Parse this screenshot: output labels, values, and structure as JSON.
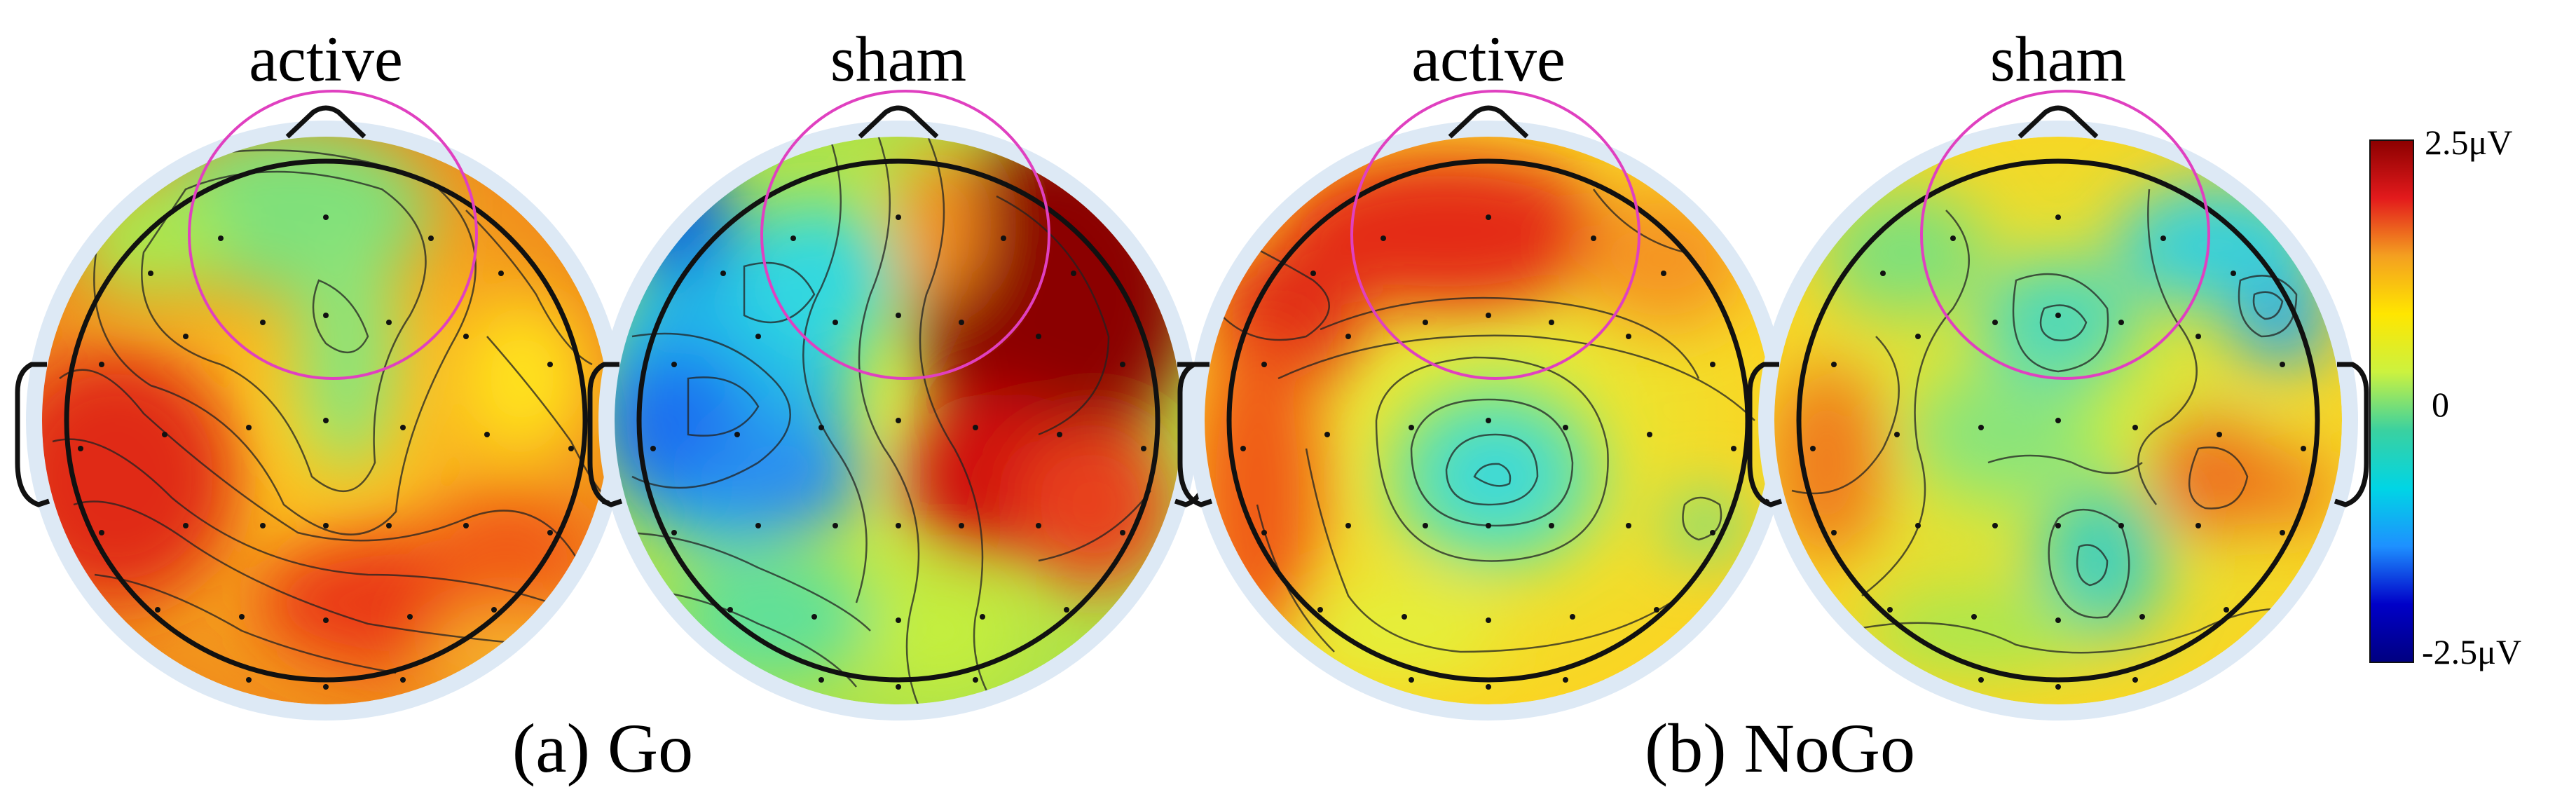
{
  "maps": [
    {
      "title": "active",
      "style": "go_active"
    },
    {
      "title": "sham",
      "style": "go_sham"
    },
    {
      "title": "active",
      "style": "nogo_active"
    },
    {
      "title": "sham",
      "style": "nogo_sham"
    }
  ],
  "groups": [
    {
      "label": "(a) Go"
    },
    {
      "label": "(b) NoGo"
    }
  ],
  "colorbar": {
    "max_label": "2.5μV",
    "mid_label": "0",
    "min_label": "-2.5μV",
    "max_value": 2.5,
    "min_value": -2.5,
    "colors": [
      "#8b0000",
      "#e31a1c",
      "#f4a020",
      "#ffe600",
      "#ccf23f",
      "#3ad1a0",
      "#00d5e5",
      "#1e90ff",
      "#0000c8",
      "#000080"
    ]
  },
  "roi_color": "#e040c0",
  "outline_color": "#111111"
}
